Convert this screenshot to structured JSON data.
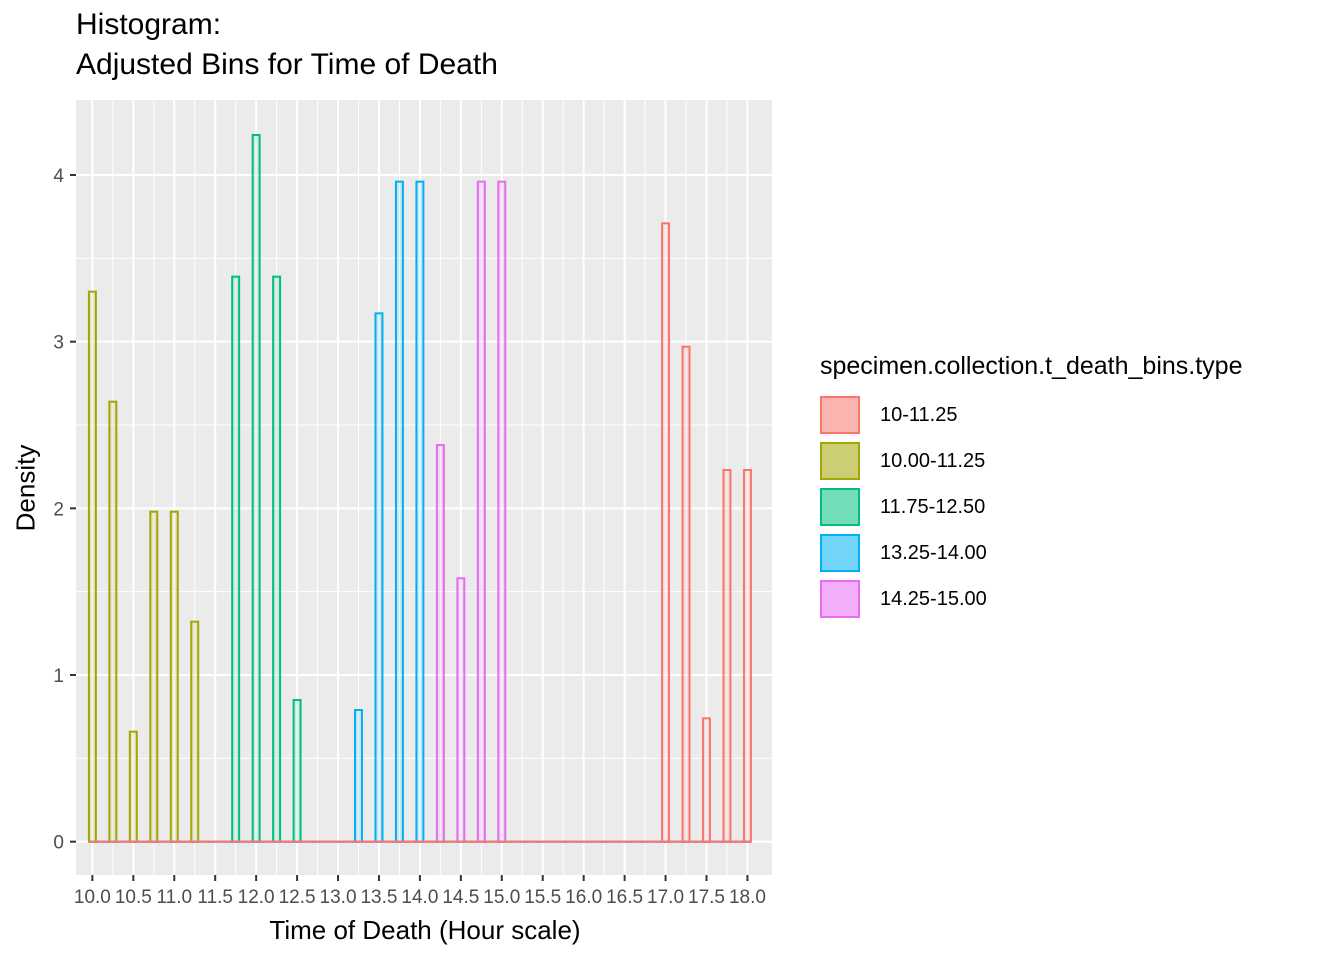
{
  "title_line1": "Histogram:",
  "title_line2": "Adjusted Bins for Time of Death",
  "legend": {
    "title": "specimen.collection.t_death_bins.type",
    "items": [
      {
        "label": "10-11.25",
        "color": "#F8766D"
      },
      {
        "label": "10.00-11.25",
        "color": "#A3A500"
      },
      {
        "label": "11.75-12.50",
        "color": "#00BF7D"
      },
      {
        "label": "13.25-14.00",
        "color": "#00B0F6"
      },
      {
        "label": "14.25-15.00",
        "color": "#E76BF3"
      }
    ]
  },
  "chart_data": {
    "type": "bar",
    "xlabel": "Time of Death (Hour scale)",
    "ylabel": "Density",
    "xlim": [
      9.8,
      18.3
    ],
    "ylim": [
      -0.2,
      4.45
    ],
    "x_ticks": [
      "10.0",
      "10.5",
      "11.0",
      "11.5",
      "12.0",
      "12.5",
      "13.0",
      "13.5",
      "14.0",
      "14.5",
      "15.0",
      "15.5",
      "16.0",
      "16.5",
      "17.0",
      "17.5",
      "18.0"
    ],
    "y_ticks": [
      0,
      1,
      2,
      3,
      4
    ],
    "bin_width": 0.25,
    "grid": true,
    "panel_background": "#EBEBEB",
    "legend_position": "right",
    "series": [
      {
        "name": "10.00-11.25",
        "color": "#A3A500",
        "x": [
          10.0,
          10.25,
          10.5,
          10.75,
          11.0,
          11.25
        ],
        "values": [
          3.3,
          2.64,
          0.66,
          1.98,
          1.98,
          1.32
        ]
      },
      {
        "name": "11.75-12.50",
        "color": "#00BF7D",
        "x": [
          11.75,
          12.0,
          12.25,
          12.5
        ],
        "values": [
          3.39,
          4.24,
          3.39,
          0.85
        ]
      },
      {
        "name": "13.25-14.00",
        "color": "#00B0F6",
        "x": [
          13.25,
          13.5,
          13.75,
          14.0
        ],
        "values": [
          0.79,
          3.17,
          3.96,
          3.96
        ]
      },
      {
        "name": "14.25-15.00",
        "color": "#E76BF3",
        "x": [
          14.25,
          14.5,
          14.75,
          15.0
        ],
        "values": [
          2.38,
          1.58,
          3.96,
          3.96
        ]
      },
      {
        "name": "10-11.25",
        "color": "#F8766D",
        "x": [
          17.0,
          17.25,
          17.5,
          17.75,
          18.0
        ],
        "values": [
          3.71,
          2.97,
          0.74,
          2.23,
          2.23
        ]
      }
    ]
  }
}
